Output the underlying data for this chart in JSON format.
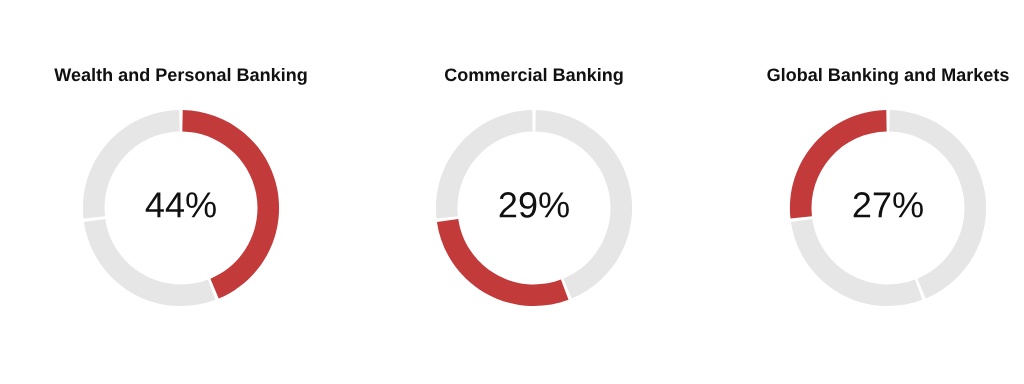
{
  "chart_data": [
    {
      "type": "donut",
      "title": "Wealth and Personal Banking",
      "categories": [
        null,
        null,
        null
      ],
      "values": [
        44,
        29,
        27
      ],
      "colors": [
        "#c23b3a",
        "#e6e6e6",
        "#e6e6e6"
      ],
      "annotations": [
        "44%"
      ]
    },
    {
      "type": "donut",
      "title": "Commercial Banking",
      "categories": [
        null,
        null,
        null
      ],
      "values": [
        44,
        29,
        27
      ],
      "colors": [
        "#e6e6e6",
        "#c23b3a",
        "#e6e6e6"
      ],
      "annotations": [
        "29%"
      ]
    },
    {
      "type": "donut",
      "title": "Global Banking and Markets",
      "categories": [
        null,
        null,
        null
      ],
      "values": [
        44,
        29,
        27
      ],
      "colors": [
        "#e6e6e6",
        "#e6e6e6",
        "#c23b3a"
      ],
      "annotations": [
        "27%"
      ]
    }
  ]
}
